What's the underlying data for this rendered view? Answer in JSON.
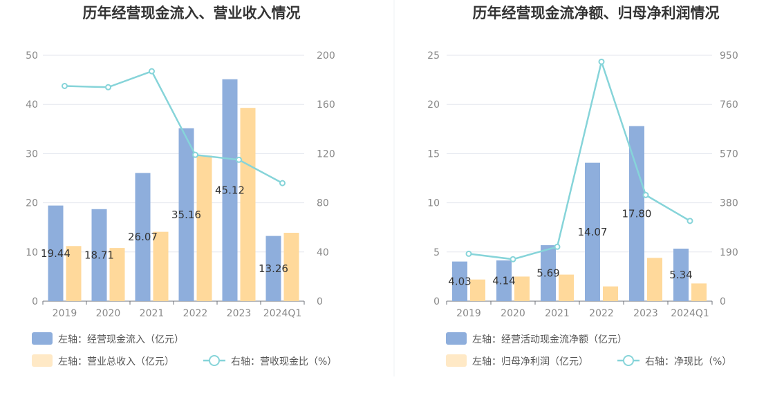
{
  "colors": {
    "bar_primary": "#8eaedc",
    "bar_secondary": "#ffd99b",
    "line": "#86d4d9",
    "grid": "#e3e6ee",
    "divider": "#eef0f4",
    "legend_secondary_swatch": "#ffe9c6"
  },
  "chart_data": [
    {
      "type": "bar",
      "title": "历年经营现金流入、营业收入情况",
      "categories": [
        "2019",
        "2020",
        "2021",
        "2022",
        "2023",
        "2024Q1"
      ],
      "left_axis": {
        "min": 0,
        "max": 50,
        "ticks": [
          "0",
          "10",
          "20",
          "30",
          "40",
          "50"
        ]
      },
      "right_axis": {
        "min": 0,
        "max": 200,
        "ticks": [
          "0",
          "40",
          "80",
          "120",
          "160",
          "200"
        ]
      },
      "series": [
        {
          "name": "左轴：经营现金流入（亿元）",
          "axis": "left",
          "type": "bar",
          "values": [
            19.44,
            18.71,
            26.07,
            35.16,
            45.12,
            13.26
          ],
          "labels": [
            "19.44",
            "18.71",
            "26.07",
            "35.16",
            "45.12",
            "13.26"
          ]
        },
        {
          "name": "左轴：营业总收入（亿元）",
          "axis": "left",
          "type": "bar",
          "values": [
            11.2,
            10.8,
            14.1,
            29.6,
            39.3,
            13.9
          ]
        },
        {
          "name": "右轴：营收现金比（%）",
          "axis": "right",
          "type": "line",
          "values": [
            175,
            174,
            187,
            119,
            115,
            96
          ]
        }
      ]
    },
    {
      "type": "bar",
      "title": "历年经营现金流净额、归母净利润情况",
      "categories": [
        "2019",
        "2020",
        "2021",
        "2022",
        "2023",
        "2024Q1"
      ],
      "left_axis": {
        "min": 0,
        "max": 25,
        "ticks": [
          "0",
          "5",
          "10",
          "15",
          "20",
          "25"
        ]
      },
      "right_axis": {
        "min": 0,
        "max": 950,
        "ticks": [
          "0",
          "190",
          "380",
          "570",
          "760",
          "950"
        ]
      },
      "series": [
        {
          "name": "左轴：经营活动现金流净额（亿元）",
          "axis": "left",
          "type": "bar",
          "values": [
            4.03,
            4.14,
            5.69,
            14.07,
            17.8,
            5.34
          ],
          "labels": [
            "4.03",
            "4.14",
            "5.69",
            "14.07",
            "17.80",
            "5.34"
          ]
        },
        {
          "name": "左轴：归母净利润（亿元）",
          "axis": "left",
          "type": "bar",
          "values": [
            2.2,
            2.5,
            2.7,
            1.5,
            4.4,
            1.8
          ]
        },
        {
          "name": "右轴：净现比（%）",
          "axis": "right",
          "type": "line",
          "values": [
            183,
            162,
            210,
            925,
            410,
            310
          ]
        }
      ]
    }
  ]
}
